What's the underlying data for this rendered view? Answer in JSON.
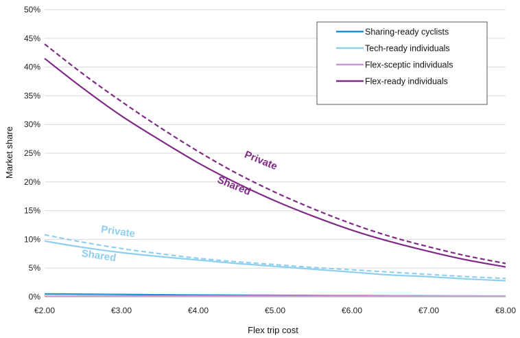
{
  "chart_data": {
    "type": "line",
    "xlabel": "Flex trip cost",
    "ylabel": "Market share",
    "xlim": [
      2.0,
      8.0
    ],
    "ylim": [
      0,
      0.5
    ],
    "x_ticks": [
      "€2.00",
      "€3.00",
      "€4.00",
      "€5.00",
      "€6.00",
      "€7.00",
      "€8.00"
    ],
    "y_ticks": [
      "0%",
      "5%",
      "10%",
      "15%",
      "20%",
      "25%",
      "30%",
      "35%",
      "40%",
      "45%",
      "50%"
    ],
    "legend_position": "top-right",
    "grid": "horizontal",
    "x": [
      2.0,
      2.5,
      3.0,
      3.5,
      4.0,
      4.5,
      5.0,
      5.5,
      6.0,
      6.5,
      7.0,
      7.5,
      8.0
    ],
    "series": [
      {
        "name": "Sharing-ready cyclists",
        "color": "#1b8fd6",
        "dash": false,
        "values": [
          0.005,
          0.0045,
          0.004,
          0.0035,
          0.003,
          0.0027,
          0.0024,
          0.0021,
          0.0019,
          0.0017,
          0.0015,
          0.0013,
          0.0012
        ]
      },
      {
        "name": "Tech-ready individuals",
        "label": "Shared",
        "color": "#8ecfee",
        "dash": false,
        "values": [
          0.097,
          0.086,
          0.077,
          0.07,
          0.064,
          0.058,
          0.053,
          0.048,
          0.043,
          0.038,
          0.035,
          0.031,
          0.028
        ]
      },
      {
        "label": "Private",
        "color": "#8ecfee",
        "dash": true,
        "values": [
          0.108,
          0.095,
          0.084,
          0.075,
          0.067,
          0.061,
          0.056,
          0.051,
          0.047,
          0.043,
          0.039,
          0.035,
          0.032
        ]
      },
      {
        "name": "Flex-sceptic individuals",
        "color": "#c79ad1",
        "dash": false,
        "values": [
          0.001,
          0.001,
          0.001,
          0.001,
          0.001,
          0.001,
          0.001,
          0.001,
          0.001,
          0.001,
          0.001,
          0.001,
          0.001
        ]
      },
      {
        "name": "Flex-ready individuals",
        "label": "Shared",
        "color": "#7f2a86",
        "dash": false,
        "values": [
          0.415,
          0.363,
          0.315,
          0.273,
          0.233,
          0.198,
          0.167,
          0.14,
          0.116,
          0.096,
          0.079,
          0.064,
          0.052
        ]
      },
      {
        "label": "Private",
        "color": "#7f2a86",
        "dash": true,
        "values": [
          0.44,
          0.388,
          0.34,
          0.295,
          0.253,
          0.215,
          0.182,
          0.153,
          0.127,
          0.105,
          0.087,
          0.071,
          0.058
        ]
      }
    ],
    "annotations": [
      {
        "text": "Private",
        "color": "#7f2a86",
        "x": 4.8,
        "y": 0.232,
        "angle": 22
      },
      {
        "text": "Shared",
        "color": "#7f2a86",
        "x": 4.45,
        "y": 0.188,
        "angle": 22
      },
      {
        "text": "Private",
        "color": "#8ecfee",
        "x": 2.95,
        "y": 0.108,
        "angle": 8
      },
      {
        "text": "Shared",
        "color": "#8ecfee",
        "x": 2.7,
        "y": 0.066,
        "angle": 8
      }
    ]
  }
}
